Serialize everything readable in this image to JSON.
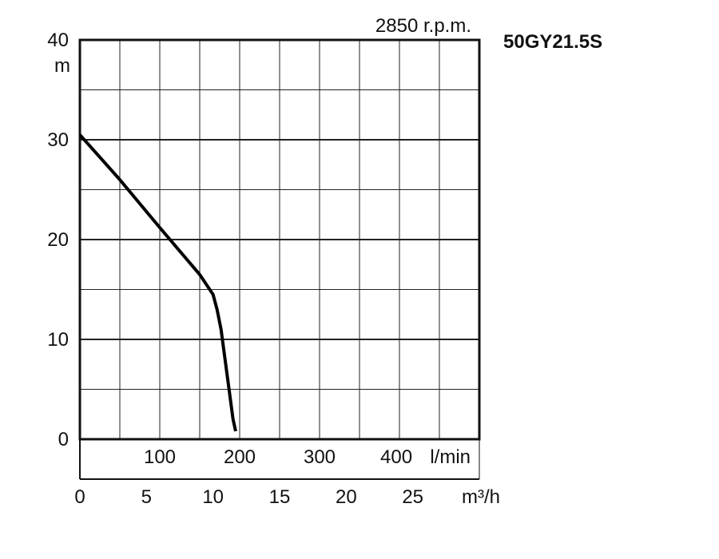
{
  "model": "50GY21.5S",
  "speed": "2850 r.p.m.",
  "chart_data": {
    "type": "line",
    "yunit": "m",
    "xunit_flow_lmin": "l/min",
    "xunit_flow_m3h": "m³/h",
    "ylim": [
      0,
      40
    ],
    "xlim_m3h": [
      0,
      30
    ],
    "y_ticks": [
      "0",
      "10",
      "20",
      "30",
      "40"
    ],
    "lmin_ticks": [
      {
        "value": 100,
        "label": "100"
      },
      {
        "value": 200,
        "label": "200"
      },
      {
        "value": 300,
        "label": "300"
      },
      {
        "value": 400,
        "label": "400"
      }
    ],
    "m3h_ticks": [
      {
        "value": 0,
        "label": "0"
      },
      {
        "value": 5,
        "label": "5"
      },
      {
        "value": 10,
        "label": "10"
      },
      {
        "value": 15,
        "label": "15"
      },
      {
        "value": 20,
        "label": "20"
      },
      {
        "value": 25,
        "label": "25"
      }
    ],
    "grid": true,
    "series": [
      {
        "x": [
          0,
          3,
          6,
          9,
          10,
          10.3,
          10.6,
          10.9,
          11.2,
          11.5,
          11.7
        ],
        "y": [
          30.5,
          26.0,
          21.2,
          16.5,
          14.5,
          13.0,
          11.0,
          8.0,
          5.0,
          2.0,
          0.8
        ]
      }
    ]
  }
}
